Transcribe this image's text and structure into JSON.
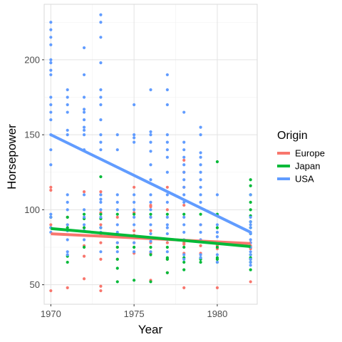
{
  "chart_data": {
    "type": "scatter",
    "xlabel": "Year",
    "ylabel": "Horsepower",
    "xlim": [
      1969.6,
      1982.4
    ],
    "ylim": [
      37,
      237
    ],
    "x_ticks": [
      1970,
      1975,
      1980
    ],
    "y_ticks": [
      50,
      100,
      150,
      200
    ],
    "grid": true,
    "legend": {
      "title": "Origin",
      "position": "right"
    },
    "series": [
      {
        "name": "Europe",
        "color": "#F8766D",
        "points": [
          [
            1970,
            46
          ],
          [
            1970,
            90
          ],
          [
            1970,
            95
          ],
          [
            1970,
            113
          ],
          [
            1970,
            115
          ],
          [
            1971,
            48
          ],
          [
            1971,
            90
          ],
          [
            1971,
            95
          ],
          [
            1972,
            54
          ],
          [
            1972,
            69
          ],
          [
            1972,
            76
          ],
          [
            1972,
            88
          ],
          [
            1972,
            112
          ],
          [
            1973,
            46
          ],
          [
            1973,
            49
          ],
          [
            1973,
            67
          ],
          [
            1973,
            78
          ],
          [
            1973,
            83
          ],
          [
            1973,
            90
          ],
          [
            1973,
            98
          ],
          [
            1973,
            110
          ],
          [
            1973,
            112
          ],
          [
            1974,
            67
          ],
          [
            1974,
            75
          ],
          [
            1974,
            78
          ],
          [
            1974,
            95
          ],
          [
            1975,
            71
          ],
          [
            1975,
            78
          ],
          [
            1975,
            83
          ],
          [
            1975,
            86
          ],
          [
            1975,
            98
          ],
          [
            1975,
            115
          ],
          [
            1976,
            53
          ],
          [
            1976,
            71
          ],
          [
            1976,
            78
          ],
          [
            1976,
            86
          ],
          [
            1976,
            95
          ],
          [
            1976,
            102
          ],
          [
            1976,
            103
          ],
          [
            1977,
            58
          ],
          [
            1977,
            67
          ],
          [
            1977,
            78
          ],
          [
            1977,
            100
          ],
          [
            1977,
            115
          ],
          [
            1978,
            48
          ],
          [
            1978,
            71
          ],
          [
            1978,
            77
          ],
          [
            1978,
            78
          ],
          [
            1978,
            103
          ],
          [
            1978,
            115
          ],
          [
            1978,
            125
          ],
          [
            1978,
            133
          ],
          [
            1979,
            71
          ],
          [
            1979,
            76
          ],
          [
            1979,
            90
          ],
          [
            1980,
            48
          ],
          [
            1980,
            67
          ],
          [
            1980,
            74
          ],
          [
            1980,
            76
          ],
          [
            1980,
            77
          ],
          [
            1980,
            78
          ],
          [
            1982,
            52
          ],
          [
            1982,
            74
          ],
          [
            1982,
            76
          ],
          [
            1982,
            78
          ]
        ]
      },
      {
        "name": "Japan",
        "color": "#00BA38",
        "points": [
          [
            1970,
            88
          ],
          [
            1970,
            95
          ],
          [
            1971,
            65
          ],
          [
            1971,
            69
          ],
          [
            1971,
            88
          ],
          [
            1971,
            95
          ],
          [
            1972,
            75
          ],
          [
            1972,
            88
          ],
          [
            1972,
            94
          ],
          [
            1972,
            97
          ],
          [
            1973,
            88
          ],
          [
            1973,
            94
          ],
          [
            1973,
            97
          ],
          [
            1973,
            122
          ],
          [
            1974,
            52
          ],
          [
            1974,
            61
          ],
          [
            1974,
            67
          ],
          [
            1974,
            75
          ],
          [
            1974,
            97
          ],
          [
            1975,
            53
          ],
          [
            1975,
            75
          ],
          [
            1975,
            97
          ],
          [
            1976,
            52
          ],
          [
            1976,
            70
          ],
          [
            1976,
            75
          ],
          [
            1976,
            97
          ],
          [
            1977,
            58
          ],
          [
            1977,
            67
          ],
          [
            1977,
            68
          ],
          [
            1977,
            75
          ],
          [
            1977,
            97
          ],
          [
            1978,
            60
          ],
          [
            1978,
            65
          ],
          [
            1978,
            68
          ],
          [
            1978,
            75
          ],
          [
            1978,
            97
          ],
          [
            1979,
            65
          ],
          [
            1979,
            67
          ],
          [
            1979,
            68
          ],
          [
            1979,
            97
          ],
          [
            1980,
            65
          ],
          [
            1980,
            67
          ],
          [
            1980,
            68
          ],
          [
            1980,
            75
          ],
          [
            1980,
            88
          ],
          [
            1980,
            97
          ],
          [
            1980,
            132
          ],
          [
            1982,
            60
          ],
          [
            1982,
            65
          ],
          [
            1982,
            67
          ],
          [
            1982,
            68
          ],
          [
            1982,
            70
          ],
          [
            1982,
            75
          ],
          [
            1982,
            84
          ],
          [
            1982,
            88
          ],
          [
            1982,
            92
          ],
          [
            1982,
            96
          ],
          [
            1982,
            100
          ],
          [
            1982,
            105
          ],
          [
            1982,
            110
          ],
          [
            1982,
            116
          ],
          [
            1982,
            120
          ]
        ]
      },
      {
        "name": "USA",
        "color": "#619CFF",
        "points": [
          [
            1970,
            85
          ],
          [
            1970,
            88
          ],
          [
            1970,
            95
          ],
          [
            1970,
            97
          ],
          [
            1970,
            130
          ],
          [
            1970,
            140
          ],
          [
            1970,
            150
          ],
          [
            1970,
            160
          ],
          [
            1970,
            165
          ],
          [
            1970,
            170
          ],
          [
            1970,
            175
          ],
          [
            1970,
            190
          ],
          [
            1970,
            193
          ],
          [
            1970,
            198
          ],
          [
            1970,
            200
          ],
          [
            1970,
            210
          ],
          [
            1970,
            215
          ],
          [
            1970,
            220
          ],
          [
            1970,
            225
          ],
          [
            1971,
            70
          ],
          [
            1971,
            72
          ],
          [
            1971,
            80
          ],
          [
            1971,
            86
          ],
          [
            1971,
            90
          ],
          [
            1971,
            100
          ],
          [
            1971,
            105
          ],
          [
            1971,
            110
          ],
          [
            1971,
            150
          ],
          [
            1971,
            153
          ],
          [
            1971,
            165
          ],
          [
            1971,
            170
          ],
          [
            1971,
            175
          ],
          [
            1971,
            180
          ],
          [
            1972,
            80
          ],
          [
            1972,
            86
          ],
          [
            1972,
            90
          ],
          [
            1972,
            95
          ],
          [
            1972,
            100
          ],
          [
            1972,
            110
          ],
          [
            1972,
            140
          ],
          [
            1972,
            150
          ],
          [
            1972,
            153
          ],
          [
            1972,
            155
          ],
          [
            1972,
            160
          ],
          [
            1972,
            165
          ],
          [
            1972,
            167
          ],
          [
            1972,
            175
          ],
          [
            1972,
            190
          ],
          [
            1972,
            208
          ],
          [
            1973,
            72
          ],
          [
            1973,
            85
          ],
          [
            1973,
            88
          ],
          [
            1973,
            95
          ],
          [
            1973,
            100
          ],
          [
            1973,
            105
          ],
          [
            1973,
            107
          ],
          [
            1973,
            110
          ],
          [
            1973,
            140
          ],
          [
            1973,
            145
          ],
          [
            1973,
            150
          ],
          [
            1973,
            160
          ],
          [
            1973,
            170
          ],
          [
            1973,
            175
          ],
          [
            1973,
            180
          ],
          [
            1973,
            198
          ],
          [
            1973,
            215
          ],
          [
            1973,
            225
          ],
          [
            1973,
            230
          ],
          [
            1974,
            72
          ],
          [
            1974,
            78
          ],
          [
            1974,
            85
          ],
          [
            1974,
            90
          ],
          [
            1974,
            100
          ],
          [
            1974,
            105
          ],
          [
            1974,
            110
          ],
          [
            1974,
            140
          ],
          [
            1974,
            150
          ],
          [
            1975,
            72
          ],
          [
            1975,
            78
          ],
          [
            1975,
            90
          ],
          [
            1975,
            95
          ],
          [
            1975,
            100
          ],
          [
            1975,
            105
          ],
          [
            1975,
            110
          ],
          [
            1975,
            145
          ],
          [
            1975,
            148
          ],
          [
            1975,
            150
          ],
          [
            1975,
            170
          ],
          [
            1976,
            72
          ],
          [
            1976,
            79
          ],
          [
            1976,
            84
          ],
          [
            1976,
            90
          ],
          [
            1976,
            95
          ],
          [
            1976,
            100
          ],
          [
            1976,
            105
          ],
          [
            1976,
            110
          ],
          [
            1976,
            120
          ],
          [
            1976,
            130
          ],
          [
            1976,
            139
          ],
          [
            1976,
            145
          ],
          [
            1976,
            150
          ],
          [
            1976,
            152
          ],
          [
            1976,
            180
          ],
          [
            1977,
            72
          ],
          [
            1977,
            80
          ],
          [
            1977,
            84
          ],
          [
            1977,
            88
          ],
          [
            1977,
            90
          ],
          [
            1977,
            95
          ],
          [
            1977,
            105
          ],
          [
            1977,
            110
          ],
          [
            1977,
            125
          ],
          [
            1977,
            135
          ],
          [
            1977,
            140
          ],
          [
            1977,
            145
          ],
          [
            1977,
            150
          ],
          [
            1977,
            170
          ],
          [
            1977,
            180
          ],
          [
            1977,
            190
          ],
          [
            1978,
            67
          ],
          [
            1978,
            70
          ],
          [
            1978,
            80
          ],
          [
            1978,
            85
          ],
          [
            1978,
            90
          ],
          [
            1978,
            95
          ],
          [
            1978,
            105
          ],
          [
            1978,
            110
          ],
          [
            1978,
            115
          ],
          [
            1978,
            120
          ],
          [
            1978,
            125
          ],
          [
            1978,
            130
          ],
          [
            1978,
            135
          ],
          [
            1978,
            140
          ],
          [
            1978,
            145
          ],
          [
            1978,
            165
          ],
          [
            1979,
            68
          ],
          [
            1979,
            70
          ],
          [
            1979,
            80
          ],
          [
            1979,
            85
          ],
          [
            1979,
            90
          ],
          [
            1979,
            105
          ],
          [
            1979,
            110
          ],
          [
            1979,
            115
          ],
          [
            1979,
            120
          ],
          [
            1979,
            125
          ],
          [
            1979,
            130
          ],
          [
            1979,
            135
          ],
          [
            1979,
            138
          ],
          [
            1979,
            150
          ],
          [
            1979,
            155
          ],
          [
            1980,
            65
          ],
          [
            1980,
            70
          ],
          [
            1980,
            78
          ],
          [
            1980,
            82
          ],
          [
            1980,
            85
          ],
          [
            1980,
            90
          ],
          [
            1980,
            110
          ],
          [
            1982,
            63
          ],
          [
            1982,
            65
          ],
          [
            1982,
            67
          ],
          [
            1982,
            70
          ],
          [
            1982,
            72
          ],
          [
            1982,
            75
          ],
          [
            1982,
            78
          ],
          [
            1982,
            80
          ],
          [
            1982,
            84
          ],
          [
            1982,
            85
          ],
          [
            1982,
            88
          ],
          [
            1982,
            90
          ],
          [
            1982,
            92
          ],
          [
            1982,
            95
          ],
          [
            1982,
            110
          ]
        ]
      }
    ],
    "trend_lines": [
      {
        "name": "Europe",
        "color": "#F8766D",
        "x": [
          1970,
          1982
        ],
        "y": [
          84,
          77.5
        ]
      },
      {
        "name": "Japan",
        "color": "#00BA38",
        "x": [
          1970,
          1982
        ],
        "y": [
          87.5,
          75.5
        ]
      },
      {
        "name": "USA",
        "color": "#619CFF",
        "x": [
          1970,
          1982
        ],
        "y": [
          150,
          85
        ]
      }
    ]
  }
}
